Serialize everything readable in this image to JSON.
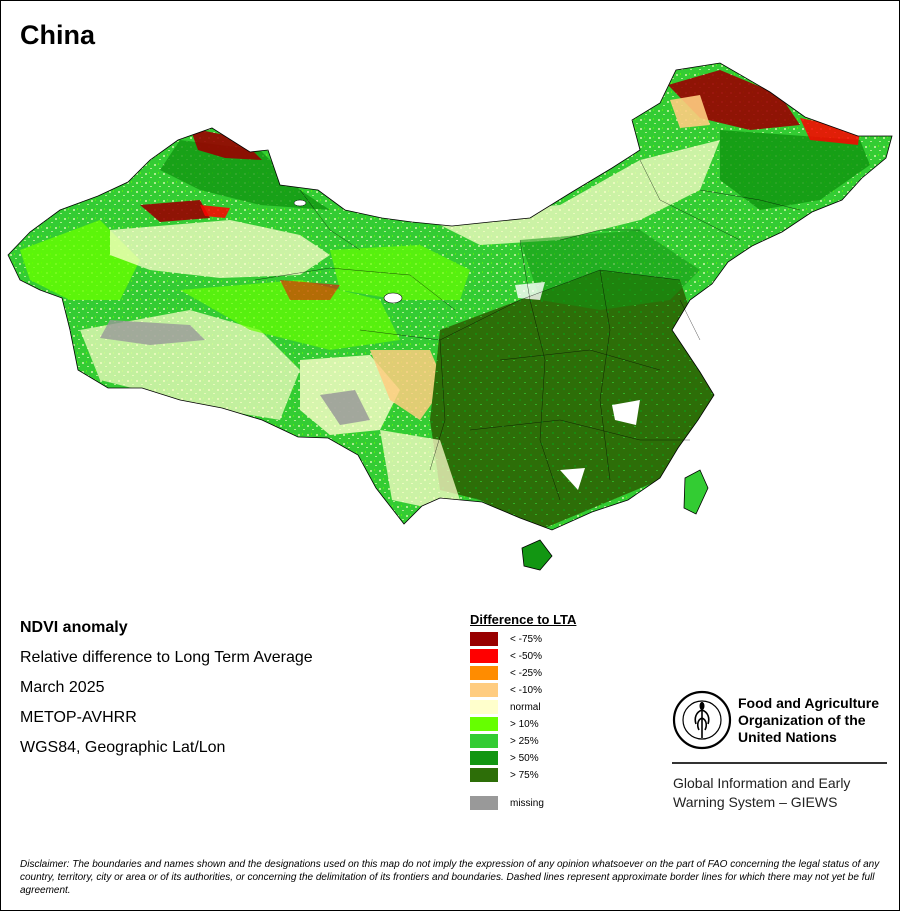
{
  "title": "China",
  "info_lines": [
    "NDVI anomaly",
    "Relative difference to Long Term Average",
    "March 2025",
    "METOP-AVHRR",
    "WGS84, Geographic Lat/Lon"
  ],
  "legend": {
    "title": "Difference to LTA",
    "items": [
      {
        "label": "< -75%",
        "color": "#990000"
      },
      {
        "label": "< -50%",
        "color": "#ff0000"
      },
      {
        "label": "< -25%",
        "color": "#ff8c00"
      },
      {
        "label": "< -10%",
        "color": "#ffcc80"
      },
      {
        "label": "normal",
        "color": "#ffffcc"
      },
      {
        "label": "> 10%",
        "color": "#66ff00"
      },
      {
        "label": "> 25%",
        "color": "#33cc33"
      },
      {
        "label": "> 50%",
        "color": "#129612"
      },
      {
        "label": "> 75%",
        "color": "#2d6e08"
      },
      {
        "label": "missing",
        "color": "#999999"
      }
    ]
  },
  "fao": {
    "logo_text": "FAO",
    "logo_motto": "FIAT PANIS",
    "org_lines": [
      "Food and Agriculture",
      "Organization of the",
      "United Nations"
    ],
    "giews_lines": [
      "Global Information and Early",
      "Warning System – GIEWS"
    ]
  },
  "disclaimer": "Disclaimer: The boundaries and names shown and the designations used on this map do not imply the expression of any opinion whatsoever on the part of FAO concerning the legal status of any country, territory, city or area or of its authorities, or concerning the delimitation of its frontiers and boundaries. Dashed lines represent approximate border lines for which there may not yet be full agreement."
}
